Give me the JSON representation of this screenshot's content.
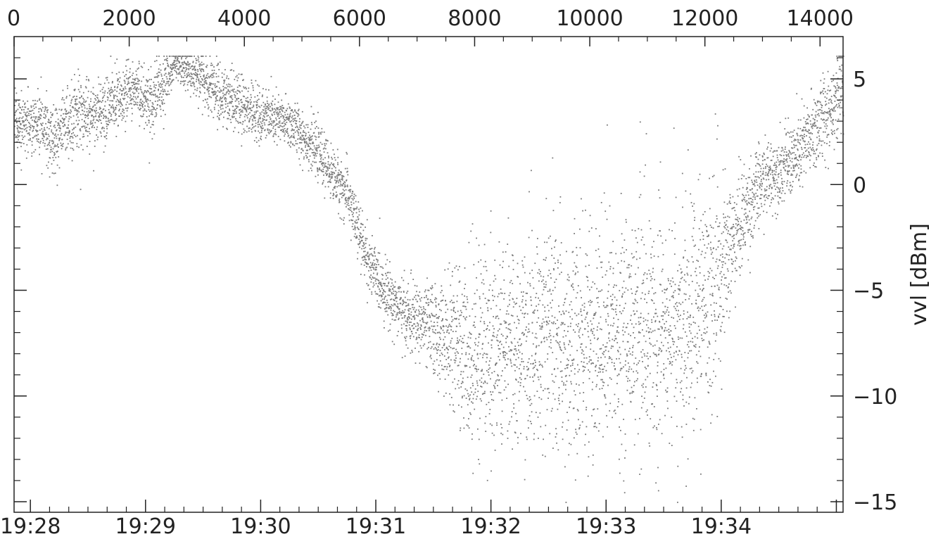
{
  "chart_data": {
    "type": "scatter",
    "title": "",
    "ylabel": "vvl [dBm]",
    "x_top": {
      "label": "",
      "range": [
        0,
        14400
      ],
      "ticks": [
        0,
        2000,
        4000,
        6000,
        8000,
        10000,
        12000,
        14000
      ],
      "tick_labels": [
        "0",
        "2000",
        "4000",
        "6000",
        "8000",
        "10000",
        "12000",
        "14000"
      ]
    },
    "x_bottom": {
      "label": "",
      "range_seconds": [
        -8.5,
        423.5
      ],
      "ticks_seconds": [
        0,
        60,
        120,
        180,
        240,
        300,
        360,
        420
      ],
      "tick_labels": [
        "19:28",
        "19:29",
        "19:30",
        "19:31",
        "19:32",
        "19:33",
        "19:34"
      ],
      "tick_label_seconds": [
        0,
        60,
        120,
        180,
        240,
        300,
        360
      ]
    },
    "y": {
      "range": [
        -15.5,
        7.0
      ],
      "ticks": [
        5,
        0,
        -5,
        -10,
        -15
      ],
      "tick_labels": [
        "5",
        "0",
        "−5",
        "−10",
        "−15"
      ],
      "minor_step": 1
    },
    "grid": false,
    "marker_color": "#7a7a7a",
    "axis_color": "#222222",
    "envelope": {
      "x": [
        0,
        300,
        700,
        1100,
        1500,
        2000,
        2400,
        2800,
        3200,
        3600,
        4000,
        4400,
        4800,
        5200,
        5500,
        5800,
        6000,
        6200,
        6500,
        6800,
        7100,
        7500,
        8000,
        8500,
        9000,
        9500,
        10000,
        10500,
        11000,
        11500,
        11800,
        12100,
        12400,
        12700,
        13000,
        13300,
        13600,
        13900,
        14200,
        14400
      ],
      "center": [
        3.0,
        3.0,
        2.2,
        3.6,
        3.3,
        4.6,
        4.0,
        5.8,
        5.2,
        4.2,
        3.6,
        3.2,
        2.9,
        1.8,
        0.6,
        -0.5,
        -2.5,
        -4.0,
        -5.2,
        -6.2,
        -6.5,
        -7.2,
        -8.0,
        -7.6,
        -7.2,
        -7.5,
        -7.4,
        -7.0,
        -6.8,
        -6.6,
        -6.4,
        -5.2,
        -3.2,
        -1.2,
        0.2,
        0.8,
        1.4,
        2.6,
        3.8,
        4.8
      ],
      "spread": [
        0.7,
        0.7,
        0.8,
        0.8,
        0.8,
        0.7,
        0.9,
        0.4,
        0.6,
        0.7,
        0.7,
        0.6,
        0.6,
        0.6,
        0.6,
        0.7,
        0.7,
        0.7,
        0.7,
        0.8,
        0.9,
        1.3,
        2.3,
        2.2,
        2.3,
        2.4,
        2.5,
        2.5,
        2.6,
        2.6,
        2.6,
        2.4,
        1.6,
        1.1,
        0.9,
        0.8,
        0.9,
        1.0,
        1.0,
        1.0
      ]
    },
    "point_count": 6500,
    "seed": 7
  }
}
